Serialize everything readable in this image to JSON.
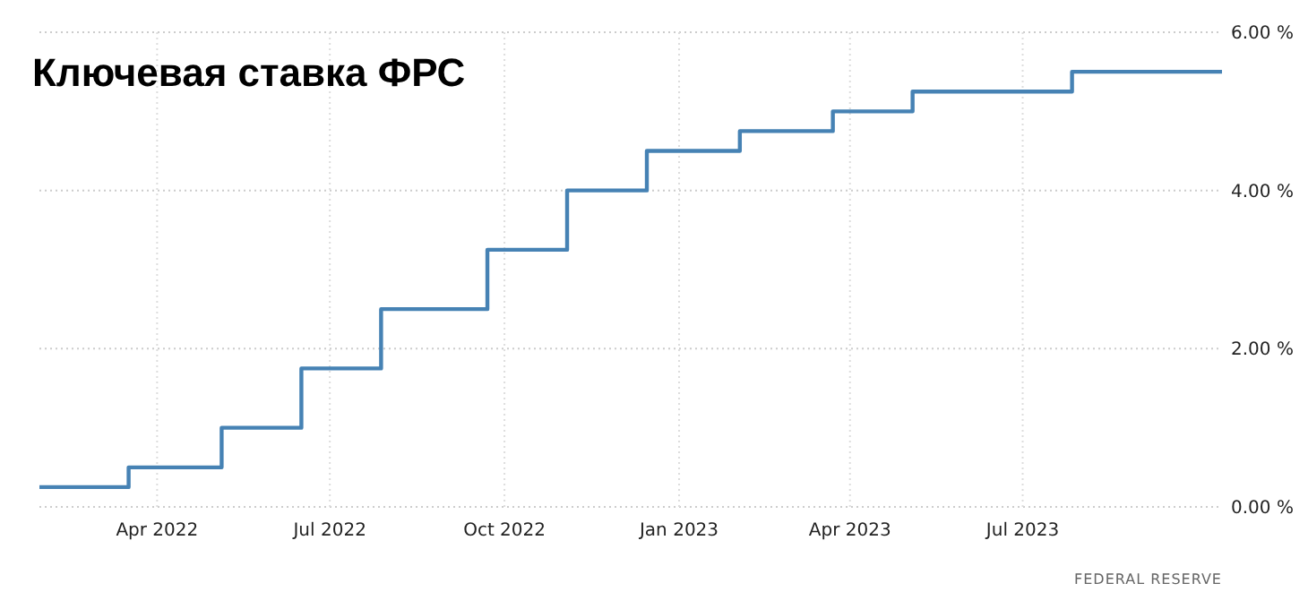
{
  "chart_data": {
    "type": "step",
    "title": "Ключевая ставка ФРС",
    "annotations": [
      "FEDERAL RESERVE"
    ],
    "x": [
      "2022-01-29",
      "2022-03-17",
      "2022-05-05",
      "2022-06-16",
      "2022-07-28",
      "2022-09-22",
      "2022-11-03",
      "2022-12-15",
      "2023-02-02",
      "2023-03-23",
      "2023-05-04",
      "2023-07-27",
      "2023-10-14"
    ],
    "series": [
      {
        "color": "#4682b4",
        "values": [
          0.25,
          0.5,
          1.0,
          1.75,
          2.5,
          3.25,
          4.0,
          4.5,
          4.75,
          5.0,
          5.25,
          5.5,
          5.5
        ]
      }
    ],
    "xlim": [
      "2022-01-29",
      "2023-10-14"
    ],
    "xticks": [
      {
        "value": "2022-04-01",
        "label": "Apr 2022"
      },
      {
        "value": "2022-07-01",
        "label": "Jul 2022"
      },
      {
        "value": "2022-10-01",
        "label": "Oct 2022"
      },
      {
        "value": "2023-01-01",
        "label": "Jan 2023"
      },
      {
        "value": "2023-04-01",
        "label": "Apr 2023"
      },
      {
        "value": "2023-07-01",
        "label": "Jul 2023"
      }
    ],
    "ylim": [
      0,
      6
    ],
    "yticks": [
      {
        "value": 0,
        "label": "0.00 %"
      },
      {
        "value": 2,
        "label": "2.00 %"
      },
      {
        "value": 4,
        "label": "4.00 %"
      },
      {
        "value": 6,
        "label": "6.00 %"
      }
    ],
    "grid": true,
    "marker": "none",
    "line_style": "solid"
  }
}
